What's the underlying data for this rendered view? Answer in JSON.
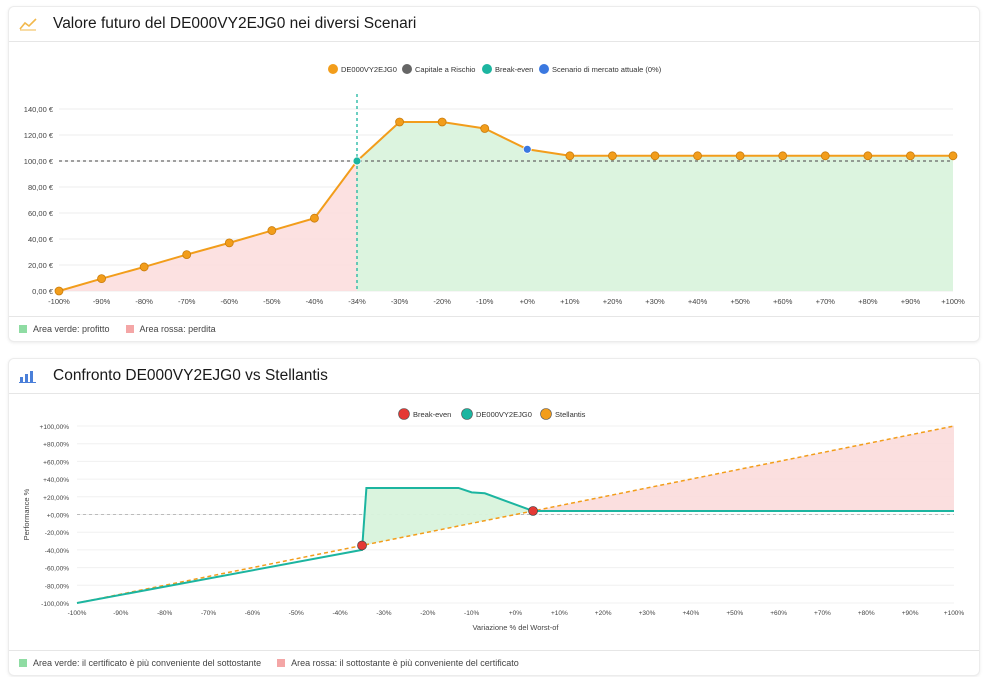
{
  "colors": {
    "orange": "#f29d1b",
    "gray": "#666666",
    "teal": "#1cb5a0",
    "blue": "#3a78e0",
    "red": "#e53935",
    "green_fill": "#d8f3dc",
    "red_fill": "#fbdcdc",
    "green_swatch": "#8fdca3",
    "red_swatch": "#f4a6a6",
    "icon1": "#f2b84b",
    "icon2": "#4a7fd9"
  },
  "icons": {
    "card1": "line-chart-icon",
    "card2": "bar-chart-icon"
  },
  "card1": {
    "title": "Valore futuro del DE000VY2EJG0 nei diversi Scenari",
    "legend": [
      "DE000VY2EJG0",
      "Capitale a Rischio",
      "Break-even",
      "Scenario di mercato attuale (0%)"
    ],
    "footer": [
      "Area verde: profitto",
      "Area rossa: perdita"
    ]
  },
  "card2": {
    "title": "Confronto DE000VY2EJG0 vs Stellantis",
    "legend": [
      "Break-even",
      "DE000VY2EJG0",
      "Stellantis"
    ],
    "footer": [
      "Area verde: il certificato è più conveniente del sottostante",
      "Area rossa: il sottostante è più conveniente del certificato"
    ]
  },
  "chart_data": [
    {
      "type": "line",
      "categories": [
        "-100%",
        "-90%",
        "-80%",
        "-70%",
        "-60%",
        "-50%",
        "-40%",
        "-34%",
        "-30%",
        "-20%",
        "-10%",
        "+0%",
        "+10%",
        "+20%",
        "+30%",
        "+40%",
        "+50%",
        "+60%",
        "+70%",
        "+80%",
        "+90%",
        "+100%"
      ],
      "series": [
        {
          "name": "DE000VY2EJG0",
          "values": [
            0,
            9.5,
            18.5,
            28,
            37,
            46.5,
            56,
            100,
            130,
            130,
            125,
            109,
            104,
            104,
            104,
            104,
            104,
            104,
            104,
            104,
            104,
            104
          ]
        },
        {
          "name": "Capitale a Rischio",
          "values": [
            100,
            100,
            100,
            100,
            100,
            100,
            100,
            100,
            100,
            100,
            100,
            100,
            100,
            100,
            100,
            100,
            100,
            100,
            100,
            100,
            100,
            100
          ]
        }
      ],
      "break_even_category": "-34%",
      "current_scenario_category": "+0%",
      "yticks": [
        "0,00 €",
        "20,00 €",
        "40,00 €",
        "60,00 €",
        "80,00 €",
        "100,00 €",
        "120,00 €",
        "140,00 €"
      ],
      "ylim": [
        0,
        140
      ],
      "legend_position": "top"
    },
    {
      "type": "line",
      "xlabel": "Variazione % del Worst-of",
      "ylabel": "Performance %",
      "xlim": [
        -100,
        100
      ],
      "ylim": [
        -100,
        100
      ],
      "xticks": [
        "-100%",
        "-90%",
        "-80%",
        "-70%",
        "-60%",
        "-50%",
        "-40%",
        "-30%",
        "-20%",
        "-10%",
        "+0%",
        "+10%",
        "+20%",
        "+30%",
        "+40%",
        "+50%",
        "+60%",
        "+70%",
        "+80%",
        "+90%",
        "+100%"
      ],
      "yticks": [
        "-100,00%",
        "-80,00%",
        "-60,00%",
        "-40,00%",
        "-20,00%",
        "+0,00%",
        "+20,00%",
        "+40,00%",
        "+60,00%",
        "+80,00%",
        "+100,00%"
      ],
      "series": [
        {
          "name": "DE000VY2EJG0",
          "points": [
            [
              -100,
              -100
            ],
            [
              -35,
              -40
            ],
            [
              -34,
              30
            ],
            [
              -13,
              30
            ],
            [
              -10,
              25
            ],
            [
              -7,
              24
            ],
            [
              4,
              4
            ],
            [
              100,
              4
            ]
          ]
        },
        {
          "name": "Stellantis",
          "points": [
            [
              -100,
              -100
            ],
            [
              100,
              100
            ]
          ]
        }
      ],
      "break_even_points": [
        [
          -35,
          -35
        ],
        [
          4,
          4
        ]
      ],
      "legend_position": "top"
    }
  ]
}
